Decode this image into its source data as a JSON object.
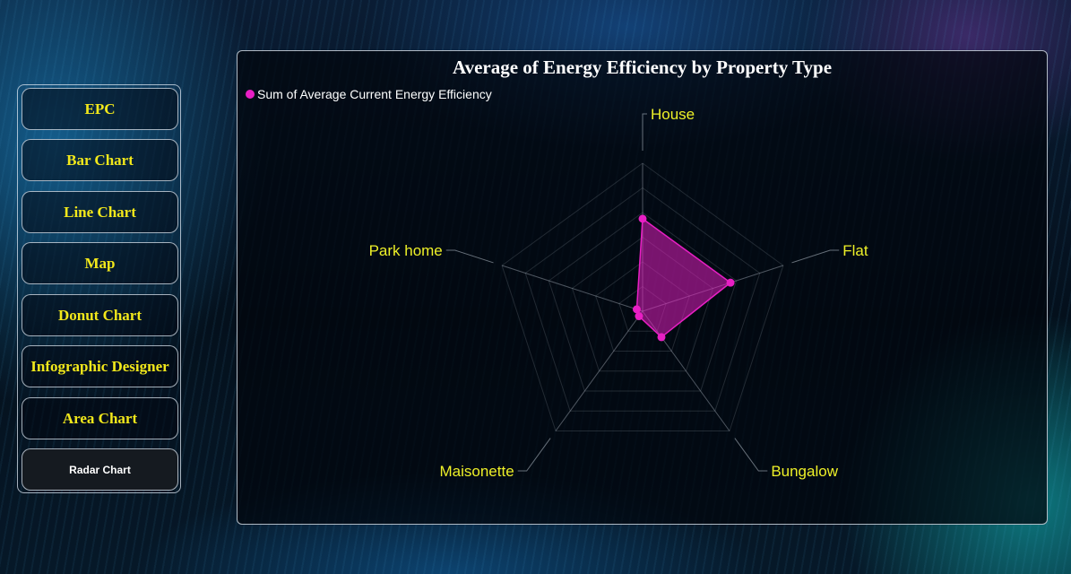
{
  "nav": {
    "items": [
      {
        "label": "EPC",
        "active": false
      },
      {
        "label": "Bar Chart",
        "active": false
      },
      {
        "label": "Line Chart",
        "active": false
      },
      {
        "label": "Map",
        "active": false
      },
      {
        "label": "Donut Chart",
        "active": false
      },
      {
        "label": "Infographic Designer",
        "active": false
      },
      {
        "label": "Area Chart",
        "active": false
      },
      {
        "label": "Radar Chart",
        "active": true
      }
    ]
  },
  "colors": {
    "series": "#e81fc4",
    "nav_text": "#f2e81b",
    "axis_label": "#eef028"
  },
  "chart_data": {
    "type": "radar",
    "title": "Average of Energy Efficiency by Property Type",
    "categories": [
      "House",
      "Flat",
      "Bungalow",
      "Maisonette",
      "Park home"
    ],
    "series": [
      {
        "name": "Sum of Average Current Energy Efficiency",
        "values": [
          75,
          75,
          26,
          5,
          5
        ]
      }
    ],
    "rlim": [
      0,
      120
    ],
    "grid": true,
    "legend": "top-left"
  }
}
